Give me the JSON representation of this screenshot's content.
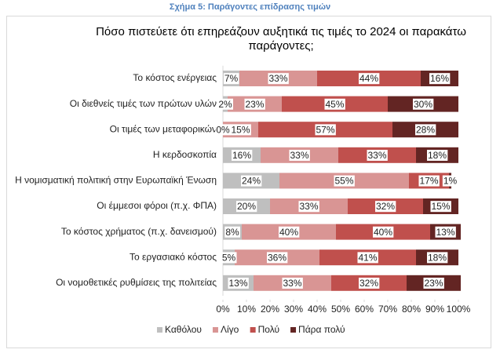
{
  "header": "Σχήμα 5: Παράγοντες επίδρασης τιμών",
  "chart_data": {
    "type": "stacked-bar-horizontal",
    "title": "Πόσο πιστεύετε ότι επηρεάζουν αυξητικά τις τιμές το 2024 οι παρακάτω παράγοντες;",
    "categories": [
      "Το κόστος ενέργειας",
      "Οι διεθνείς τιμές των πρώτων υλών",
      "Οι τιμές των μεταφορικών",
      "Η κερδοσκοπία",
      "Η νομισματική πολιτική στην Ευρωπαϊκή Ένωση",
      "Οι έμμεσοι φόροι (π.χ. ΦΠΑ)",
      "Το κόστος χρήματος (π.χ. δανεισμού)",
      "Το εργασιακό κόστος",
      "Οι νομοθετικές ρυθμίσεις της πολιτείας"
    ],
    "series": [
      {
        "name": "Καθόλου",
        "color": "#bfbfbf",
        "values": [
          7,
          2,
          0,
          16,
          24,
          20,
          8,
          5,
          13
        ],
        "value_labels": [
          "7%",
          "2%",
          "0%",
          "16%",
          "24%",
          "20%",
          "8%",
          "5%",
          "13%"
        ]
      },
      {
        "name": "Λίγο",
        "color": "#d99594",
        "values": [
          33,
          23,
          15,
          33,
          55,
          33,
          40,
          36,
          33
        ],
        "value_labels": [
          "33%",
          "23%",
          "15%",
          "33%",
          "55%",
          "33%",
          "40%",
          "36%",
          "33%"
        ]
      },
      {
        "name": "Πολύ",
        "color": "#c0504d",
        "values": [
          44,
          45,
          57,
          33,
          17,
          32,
          40,
          41,
          32
        ],
        "value_labels": [
          "44%",
          "45%",
          "57%",
          "33%",
          "17%",
          "32%",
          "40%",
          "41%",
          "32%"
        ]
      },
      {
        "name": "Πάρα πολύ",
        "color": "#632523",
        "values": [
          16,
          30,
          28,
          18,
          1,
          15,
          13,
          18,
          23
        ],
        "value_labels": [
          "16%",
          "30%",
          "28%",
          "18%",
          "1%",
          "15%",
          "13%",
          "18%",
          "23%"
        ]
      }
    ],
    "xlim": [
      0,
      100
    ],
    "xticks": [
      {
        "value": 0,
        "label": "0%"
      },
      {
        "value": 10,
        "label": "10%"
      },
      {
        "value": 20,
        "label": "20%"
      },
      {
        "value": 30,
        "label": "30%"
      },
      {
        "value": 40,
        "label": "40%"
      },
      {
        "value": 50,
        "label": "50%"
      },
      {
        "value": 60,
        "label": "60%"
      },
      {
        "value": 70,
        "label": "70%"
      },
      {
        "value": 80,
        "label": "80%"
      },
      {
        "value": 90,
        "label": "90%"
      },
      {
        "value": 100,
        "label": "100%"
      }
    ],
    "legend": "bottom"
  }
}
